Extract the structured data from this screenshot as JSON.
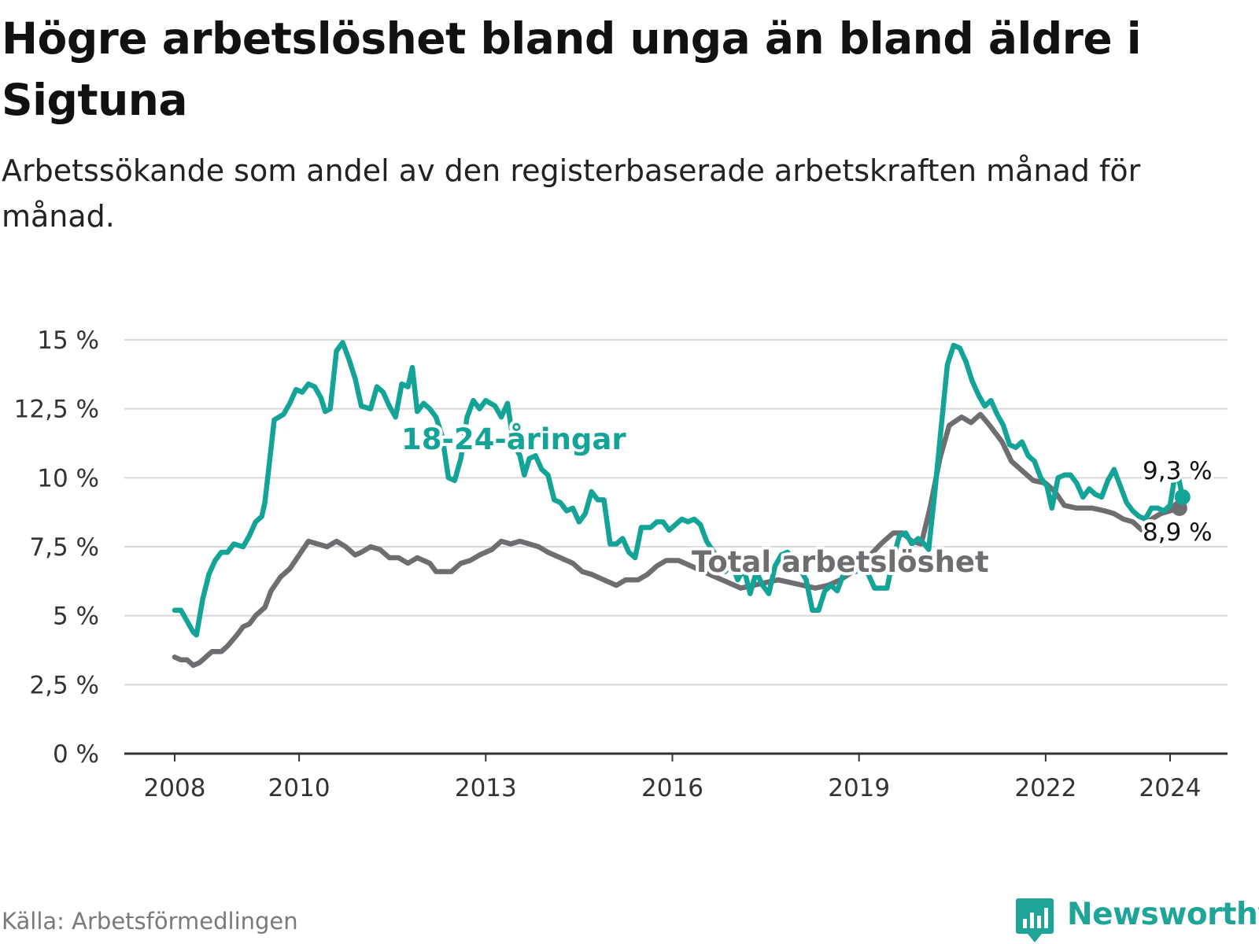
{
  "title": "Högre arbetslöshet bland unga än bland äldre i Sigtuna",
  "subtitle": "Arbetssökande som andel av den registerbaserade arbetskraften månad för månad.",
  "source": "Källa: Arbetsförmedlingen",
  "brand": {
    "name": "Newsworthy",
    "color": "#1fa598",
    "icon": "newsworthy-logo-icon"
  },
  "colors": {
    "youth": "#13a497",
    "total": "#6f6d72",
    "grid": "#d8d8d8",
    "axis": "#333333"
  },
  "chart_data": {
    "type": "line",
    "title": "Högre arbetslöshet bland unga än bland äldre i Sigtuna",
    "xlabel": "",
    "ylabel": "",
    "xlim": [
      2007.75,
      2025.6
    ],
    "ylim": [
      0,
      15
    ],
    "grid": true,
    "y_ticks": [
      {
        "value": 0,
        "label": "0 %"
      },
      {
        "value": 2.5,
        "label": "2,5 %"
      },
      {
        "value": 5,
        "label": "5 %"
      },
      {
        "value": 7.5,
        "label": "7,5 %"
      },
      {
        "value": 10,
        "label": "10 %"
      },
      {
        "value": 12.5,
        "label": "12,5 %"
      },
      {
        "value": 15,
        "label": "15 %"
      }
    ],
    "x_ticks": [
      {
        "value": 2008,
        "label": "2008"
      },
      {
        "value": 2010,
        "label": "2010"
      },
      {
        "value": 2013,
        "label": "2013"
      },
      {
        "value": 2016,
        "label": "2016"
      },
      {
        "value": 2019,
        "label": "2019"
      },
      {
        "value": 2022,
        "label": "2022"
      },
      {
        "value": 2024,
        "label": "2024"
      }
    ],
    "series": [
      {
        "name": "Total arbetslöshet",
        "label": "Total arbetslöshet",
        "color": "#6f6d72",
        "end_label": "8,9 %",
        "points": [
          [
            2008.0,
            3.5
          ],
          [
            2008.1,
            3.4
          ],
          [
            2008.2,
            3.4
          ],
          [
            2008.3,
            3.2
          ],
          [
            2008.4,
            3.3
          ],
          [
            2008.5,
            3.5
          ],
          [
            2008.6,
            3.7
          ],
          [
            2008.75,
            3.7
          ],
          [
            2008.85,
            3.9
          ],
          [
            2009.0,
            4.3
          ],
          [
            2009.1,
            4.6
          ],
          [
            2009.2,
            4.7
          ],
          [
            2009.3,
            5.0
          ],
          [
            2009.45,
            5.3
          ],
          [
            2009.55,
            5.9
          ],
          [
            2009.7,
            6.4
          ],
          [
            2009.85,
            6.7
          ],
          [
            2010.0,
            7.2
          ],
          [
            2010.15,
            7.7
          ],
          [
            2010.3,
            7.6
          ],
          [
            2010.45,
            7.5
          ],
          [
            2010.6,
            7.7
          ],
          [
            2010.75,
            7.5
          ],
          [
            2010.9,
            7.2
          ],
          [
            2011.0,
            7.3
          ],
          [
            2011.15,
            7.5
          ],
          [
            2011.3,
            7.4
          ],
          [
            2011.45,
            7.1
          ],
          [
            2011.6,
            7.1
          ],
          [
            2011.75,
            6.9
          ],
          [
            2011.9,
            7.1
          ],
          [
            2012.1,
            6.9
          ],
          [
            2012.2,
            6.6
          ],
          [
            2012.45,
            6.6
          ],
          [
            2012.6,
            6.9
          ],
          [
            2012.75,
            7.0
          ],
          [
            2012.9,
            7.2
          ],
          [
            2013.1,
            7.4
          ],
          [
            2013.25,
            7.7
          ],
          [
            2013.4,
            7.6
          ],
          [
            2013.55,
            7.7
          ],
          [
            2013.7,
            7.6
          ],
          [
            2013.85,
            7.5
          ],
          [
            2014.0,
            7.3
          ],
          [
            2014.2,
            7.1
          ],
          [
            2014.4,
            6.9
          ],
          [
            2014.55,
            6.6
          ],
          [
            2014.7,
            6.5
          ],
          [
            2014.9,
            6.3
          ],
          [
            2015.1,
            6.1
          ],
          [
            2015.25,
            6.3
          ],
          [
            2015.45,
            6.3
          ],
          [
            2015.6,
            6.5
          ],
          [
            2015.75,
            6.8
          ],
          [
            2015.9,
            7.0
          ],
          [
            2016.1,
            7.0
          ],
          [
            2016.3,
            6.8
          ],
          [
            2016.5,
            6.6
          ],
          [
            2016.7,
            6.4
          ],
          [
            2016.9,
            6.2
          ],
          [
            2017.1,
            6.0
          ],
          [
            2017.3,
            6.1
          ],
          [
            2017.5,
            6.2
          ],
          [
            2017.7,
            6.3
          ],
          [
            2017.9,
            6.2
          ],
          [
            2018.1,
            6.1
          ],
          [
            2018.3,
            6.0
          ],
          [
            2018.5,
            6.1
          ],
          [
            2018.7,
            6.3
          ],
          [
            2018.9,
            6.6
          ],
          [
            2019.1,
            7.0
          ],
          [
            2019.35,
            7.6
          ],
          [
            2019.55,
            8.0
          ],
          [
            2019.7,
            8.0
          ],
          [
            2019.85,
            7.7
          ],
          [
            2020.0,
            7.6
          ],
          [
            2020.15,
            9.0
          ],
          [
            2020.3,
            10.7
          ],
          [
            2020.45,
            11.9
          ],
          [
            2020.65,
            12.2
          ],
          [
            2020.8,
            12.0
          ],
          [
            2020.95,
            12.3
          ],
          [
            2021.1,
            11.9
          ],
          [
            2021.3,
            11.3
          ],
          [
            2021.45,
            10.6
          ],
          [
            2021.6,
            10.3
          ],
          [
            2021.8,
            9.9
          ],
          [
            2022.0,
            9.8
          ],
          [
            2022.15,
            9.5
          ],
          [
            2022.3,
            9.0
          ],
          [
            2022.5,
            8.9
          ],
          [
            2022.75,
            8.9
          ],
          [
            2022.95,
            8.8
          ],
          [
            2023.1,
            8.7
          ],
          [
            2023.25,
            8.5
          ],
          [
            2023.4,
            8.4
          ],
          [
            2023.55,
            8.1
          ],
          [
            2023.7,
            8.5
          ],
          [
            2023.85,
            8.7
          ],
          [
            2024.0,
            8.8
          ],
          [
            2024.15,
            8.9
          ]
        ]
      },
      {
        "name": "18-24-åringar",
        "label": "18-24-åringar",
        "color": "#13a497",
        "end_label": "9,3 %",
        "points": [
          [
            2008.0,
            5.2
          ],
          [
            2008.1,
            5.2
          ],
          [
            2008.2,
            4.8
          ],
          [
            2008.3,
            4.4
          ],
          [
            2008.35,
            4.3
          ],
          [
            2008.45,
            5.6
          ],
          [
            2008.55,
            6.5
          ],
          [
            2008.65,
            7.0
          ],
          [
            2008.75,
            7.3
          ],
          [
            2008.85,
            7.3
          ],
          [
            2008.95,
            7.6
          ],
          [
            2009.1,
            7.5
          ],
          [
            2009.2,
            7.9
          ],
          [
            2009.3,
            8.4
          ],
          [
            2009.4,
            8.6
          ],
          [
            2009.45,
            9.1
          ],
          [
            2009.52,
            10.5
          ],
          [
            2009.6,
            12.1
          ],
          [
            2009.75,
            12.3
          ],
          [
            2009.85,
            12.7
          ],
          [
            2009.95,
            13.2
          ],
          [
            2010.05,
            13.1
          ],
          [
            2010.15,
            13.4
          ],
          [
            2010.25,
            13.3
          ],
          [
            2010.35,
            12.9
          ],
          [
            2010.42,
            12.4
          ],
          [
            2010.5,
            12.5
          ],
          [
            2010.6,
            14.6
          ],
          [
            2010.7,
            14.9
          ],
          [
            2010.8,
            14.3
          ],
          [
            2010.9,
            13.6
          ],
          [
            2011.0,
            12.6
          ],
          [
            2011.15,
            12.5
          ],
          [
            2011.25,
            13.3
          ],
          [
            2011.35,
            13.1
          ],
          [
            2011.45,
            12.6
          ],
          [
            2011.55,
            12.2
          ],
          [
            2011.65,
            13.4
          ],
          [
            2011.75,
            13.3
          ],
          [
            2011.82,
            14.0
          ],
          [
            2011.9,
            12.4
          ],
          [
            2012.0,
            12.7
          ],
          [
            2012.1,
            12.5
          ],
          [
            2012.2,
            12.2
          ],
          [
            2012.3,
            11.5
          ],
          [
            2012.4,
            10.0
          ],
          [
            2012.5,
            9.9
          ],
          [
            2012.6,
            10.7
          ],
          [
            2012.7,
            12.2
          ],
          [
            2012.8,
            12.8
          ],
          [
            2012.9,
            12.5
          ],
          [
            2013.0,
            12.8
          ],
          [
            2013.15,
            12.6
          ],
          [
            2013.25,
            12.2
          ],
          [
            2013.35,
            12.7
          ],
          [
            2013.45,
            11.2
          ],
          [
            2013.55,
            10.8
          ],
          [
            2013.62,
            10.1
          ],
          [
            2013.7,
            10.7
          ],
          [
            2013.8,
            10.8
          ],
          [
            2013.9,
            10.3
          ],
          [
            2014.0,
            10.1
          ],
          [
            2014.1,
            9.2
          ],
          [
            2014.2,
            9.1
          ],
          [
            2014.3,
            8.8
          ],
          [
            2014.4,
            8.9
          ],
          [
            2014.5,
            8.4
          ],
          [
            2014.6,
            8.7
          ],
          [
            2014.7,
            9.5
          ],
          [
            2014.8,
            9.2
          ],
          [
            2014.9,
            9.2
          ],
          [
            2015.0,
            7.6
          ],
          [
            2015.1,
            7.6
          ],
          [
            2015.2,
            7.8
          ],
          [
            2015.3,
            7.3
          ],
          [
            2015.4,
            7.1
          ],
          [
            2015.5,
            8.2
          ],
          [
            2015.65,
            8.2
          ],
          [
            2015.75,
            8.4
          ],
          [
            2015.85,
            8.4
          ],
          [
            2015.95,
            8.1
          ],
          [
            2016.05,
            8.3
          ],
          [
            2016.15,
            8.5
          ],
          [
            2016.25,
            8.4
          ],
          [
            2016.35,
            8.5
          ],
          [
            2016.45,
            8.3
          ],
          [
            2016.55,
            7.7
          ],
          [
            2016.75,
            7.0
          ],
          [
            2016.85,
            6.6
          ],
          [
            2016.95,
            6.9
          ],
          [
            2017.05,
            6.3
          ],
          [
            2017.15,
            6.7
          ],
          [
            2017.25,
            5.8
          ],
          [
            2017.35,
            6.6
          ],
          [
            2017.45,
            6.1
          ],
          [
            2017.55,
            5.8
          ],
          [
            2017.65,
            6.8
          ],
          [
            2017.75,
            7.2
          ],
          [
            2017.85,
            7.3
          ],
          [
            2017.95,
            7.0
          ],
          [
            2018.05,
            6.7
          ],
          [
            2018.15,
            6.3
          ],
          [
            2018.25,
            5.2
          ],
          [
            2018.35,
            5.2
          ],
          [
            2018.45,
            5.9
          ],
          [
            2018.55,
            6.1
          ],
          [
            2018.65,
            5.9
          ],
          [
            2018.75,
            6.5
          ],
          [
            2018.85,
            6.9
          ],
          [
            2018.95,
            6.6
          ],
          [
            2019.05,
            6.9
          ],
          [
            2019.15,
            6.5
          ],
          [
            2019.25,
            6.0
          ],
          [
            2019.35,
            6.0
          ],
          [
            2019.45,
            6.0
          ],
          [
            2019.55,
            7.1
          ],
          [
            2019.65,
            7.9
          ],
          [
            2019.75,
            8.0
          ],
          [
            2019.85,
            7.6
          ],
          [
            2019.95,
            7.8
          ],
          [
            2020.05,
            7.6
          ],
          [
            2020.12,
            7.4
          ],
          [
            2020.22,
            9.5
          ],
          [
            2020.32,
            11.8
          ],
          [
            2020.42,
            14.1
          ],
          [
            2020.52,
            14.8
          ],
          [
            2020.62,
            14.7
          ],
          [
            2020.72,
            14.2
          ],
          [
            2020.82,
            13.5
          ],
          [
            2020.92,
            13.0
          ],
          [
            2021.02,
            12.6
          ],
          [
            2021.12,
            12.8
          ],
          [
            2021.22,
            12.3
          ],
          [
            2021.32,
            11.9
          ],
          [
            2021.42,
            11.2
          ],
          [
            2021.52,
            11.1
          ],
          [
            2021.62,
            11.3
          ],
          [
            2021.72,
            10.8
          ],
          [
            2021.82,
            10.6
          ],
          [
            2021.92,
            10.0
          ],
          [
            2022.02,
            9.7
          ],
          [
            2022.1,
            8.9
          ],
          [
            2022.2,
            10.0
          ],
          [
            2022.3,
            10.1
          ],
          [
            2022.4,
            10.1
          ],
          [
            2022.5,
            9.8
          ],
          [
            2022.6,
            9.3
          ],
          [
            2022.7,
            9.6
          ],
          [
            2022.8,
            9.4
          ],
          [
            2022.9,
            9.3
          ],
          [
            2023.0,
            9.9
          ],
          [
            2023.1,
            10.3
          ],
          [
            2023.2,
            9.7
          ],
          [
            2023.3,
            9.1
          ],
          [
            2023.4,
            8.8
          ],
          [
            2023.5,
            8.6
          ],
          [
            2023.6,
            8.5
          ],
          [
            2023.7,
            8.9
          ],
          [
            2023.8,
            8.9
          ],
          [
            2023.9,
            8.8
          ],
          [
            2024.0,
            9.0
          ],
          [
            2024.1,
            10.4
          ],
          [
            2024.2,
            9.3
          ]
        ]
      }
    ]
  }
}
